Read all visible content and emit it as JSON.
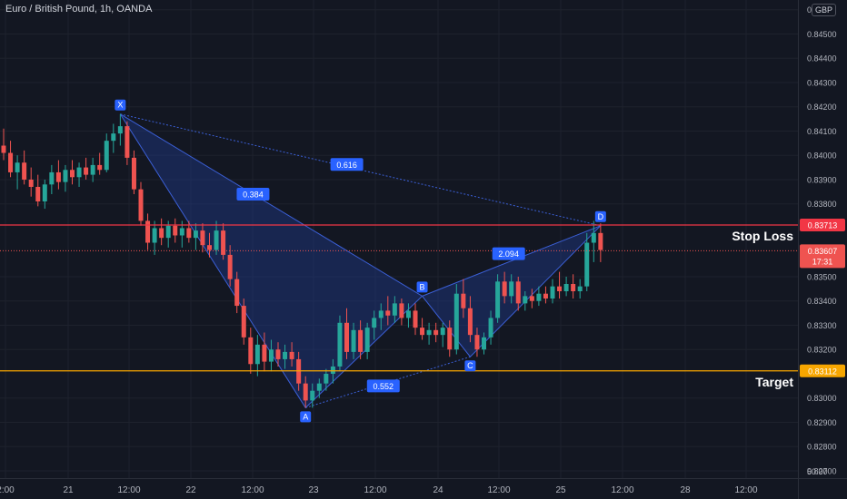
{
  "header": {
    "title": "Euro / British Pound, 1h, OANDA",
    "currency_badge": "GBP"
  },
  "price_axis": {
    "bottom_value": "50.00"
  },
  "colors": {
    "background": "#131722",
    "grid": "#1e222d",
    "up_candle": "#26a69a",
    "down_candle": "#ef5350",
    "pattern_fill": "#1e3a8a",
    "pattern_line": "#3b5fd6",
    "stop_loss_line": "#f23645",
    "target_line": "#f7a600",
    "label_bg": "#2962ff"
  },
  "chart_data": {
    "type": "candlestick",
    "x_tick_labels": [
      "2:00",
      "21",
      "12:00",
      "22",
      "12:00",
      "23",
      "12:00",
      "24",
      "12:00",
      "25",
      "12:00",
      "28",
      "12:00"
    ],
    "y_tick_labels": [
      "0",
      "0.84500",
      "0.84400",
      "0.84300",
      "0.84200",
      "0.84100",
      "0.84000",
      "0.83900",
      "0.83800",
      "0.83500",
      "0.83400",
      "0.83300",
      "0.83200",
      "0.83000",
      "0.82900",
      "0.82800",
      "0.82700"
    ],
    "ylim": [
      0.8267,
      0.8464
    ],
    "horizontal_lines": [
      {
        "label": "Stop Loss",
        "price": 0.83713,
        "price_label": "0.83713"
      },
      {
        "label": "Target",
        "price": 0.83112,
        "price_label": "0.83112"
      }
    ],
    "last_price": {
      "price": 0.83607,
      "price_label": "0.83607",
      "countdown": "17:31"
    },
    "harmonic_pattern": {
      "points": [
        {
          "name": "X",
          "price": 0.8417
        },
        {
          "name": "A",
          "price": 0.8296
        },
        {
          "name": "B",
          "price": 0.8342
        },
        {
          "name": "C",
          "price": 0.8317
        },
        {
          "name": "D",
          "price": 0.8371
        }
      ],
      "ratios": [
        {
          "legs": "XB",
          "label": "0.384"
        },
        {
          "legs": "XD",
          "label": "0.616"
        },
        {
          "legs": "AC",
          "label": "0.552"
        },
        {
          "legs": "BD",
          "label": "2.094"
        }
      ]
    },
    "candles": [
      {
        "o": 0.8404,
        "h": 0.8411,
        "l": 0.8398,
        "c": 0.8401
      },
      {
        "o": 0.8401,
        "h": 0.8406,
        "l": 0.8391,
        "c": 0.8393
      },
      {
        "o": 0.8393,
        "h": 0.84,
        "l": 0.8386,
        "c": 0.8397
      },
      {
        "o": 0.8397,
        "h": 0.8402,
        "l": 0.8388,
        "c": 0.839
      },
      {
        "o": 0.839,
        "h": 0.8395,
        "l": 0.8383,
        "c": 0.8387
      },
      {
        "o": 0.8387,
        "h": 0.8392,
        "l": 0.8379,
        "c": 0.8381
      },
      {
        "o": 0.8381,
        "h": 0.839,
        "l": 0.8378,
        "c": 0.8388
      },
      {
        "o": 0.8388,
        "h": 0.8396,
        "l": 0.8384,
        "c": 0.8393
      },
      {
        "o": 0.8393,
        "h": 0.8398,
        "l": 0.8386,
        "c": 0.8389
      },
      {
        "o": 0.8389,
        "h": 0.8396,
        "l": 0.8385,
        "c": 0.8394
      },
      {
        "o": 0.8394,
        "h": 0.8398,
        "l": 0.8388,
        "c": 0.8391
      },
      {
        "o": 0.8391,
        "h": 0.8397,
        "l": 0.8387,
        "c": 0.8395
      },
      {
        "o": 0.8395,
        "h": 0.8399,
        "l": 0.839,
        "c": 0.8392
      },
      {
        "o": 0.8392,
        "h": 0.8399,
        "l": 0.8389,
        "c": 0.8396
      },
      {
        "o": 0.8396,
        "h": 0.8401,
        "l": 0.8392,
        "c": 0.8394
      },
      {
        "o": 0.8394,
        "h": 0.8409,
        "l": 0.8393,
        "c": 0.8406
      },
      {
        "o": 0.8406,
        "h": 0.8413,
        "l": 0.8401,
        "c": 0.8409
      },
      {
        "o": 0.8409,
        "h": 0.8417,
        "l": 0.8404,
        "c": 0.8412
      },
      {
        "o": 0.8412,
        "h": 0.8414,
        "l": 0.8396,
        "c": 0.8399
      },
      {
        "o": 0.8399,
        "h": 0.8402,
        "l": 0.8384,
        "c": 0.8386
      },
      {
        "o": 0.8386,
        "h": 0.8389,
        "l": 0.8371,
        "c": 0.8373
      },
      {
        "o": 0.8373,
        "h": 0.8376,
        "l": 0.8361,
        "c": 0.8364
      },
      {
        "o": 0.8364,
        "h": 0.8373,
        "l": 0.8359,
        "c": 0.837
      },
      {
        "o": 0.837,
        "h": 0.8374,
        "l": 0.8363,
        "c": 0.8366
      },
      {
        "o": 0.8366,
        "h": 0.8373,
        "l": 0.8362,
        "c": 0.8371
      },
      {
        "o": 0.8371,
        "h": 0.8374,
        "l": 0.8364,
        "c": 0.8367
      },
      {
        "o": 0.8367,
        "h": 0.8373,
        "l": 0.8362,
        "c": 0.837
      },
      {
        "o": 0.837,
        "h": 0.8373,
        "l": 0.8364,
        "c": 0.8366
      },
      {
        "o": 0.8366,
        "h": 0.8372,
        "l": 0.8361,
        "c": 0.8369
      },
      {
        "o": 0.8369,
        "h": 0.8372,
        "l": 0.836,
        "c": 0.8363
      },
      {
        "o": 0.8363,
        "h": 0.8368,
        "l": 0.8358,
        "c": 0.8361
      },
      {
        "o": 0.8361,
        "h": 0.8373,
        "l": 0.8359,
        "c": 0.8369
      },
      {
        "o": 0.8369,
        "h": 0.8372,
        "l": 0.8357,
        "c": 0.8359
      },
      {
        "o": 0.8359,
        "h": 0.8363,
        "l": 0.8346,
        "c": 0.8349
      },
      {
        "o": 0.8349,
        "h": 0.8352,
        "l": 0.8335,
        "c": 0.8338
      },
      {
        "o": 0.8338,
        "h": 0.8341,
        "l": 0.8322,
        "c": 0.8325
      },
      {
        "o": 0.8325,
        "h": 0.8329,
        "l": 0.831,
        "c": 0.8314
      },
      {
        "o": 0.8314,
        "h": 0.8326,
        "l": 0.8309,
        "c": 0.8322
      },
      {
        "o": 0.8322,
        "h": 0.8327,
        "l": 0.8311,
        "c": 0.8315
      },
      {
        "o": 0.8315,
        "h": 0.8324,
        "l": 0.8311,
        "c": 0.832
      },
      {
        "o": 0.832,
        "h": 0.8323,
        "l": 0.8313,
        "c": 0.8316
      },
      {
        "o": 0.8316,
        "h": 0.8322,
        "l": 0.8312,
        "c": 0.8319
      },
      {
        "o": 0.8319,
        "h": 0.8323,
        "l": 0.8313,
        "c": 0.8316
      },
      {
        "o": 0.8316,
        "h": 0.8319,
        "l": 0.8303,
        "c": 0.8306
      },
      {
        "o": 0.8306,
        "h": 0.8309,
        "l": 0.8296,
        "c": 0.8299
      },
      {
        "o": 0.8299,
        "h": 0.8306,
        "l": 0.8296,
        "c": 0.8303
      },
      {
        "o": 0.8303,
        "h": 0.8308,
        "l": 0.83,
        "c": 0.8306
      },
      {
        "o": 0.8306,
        "h": 0.8312,
        "l": 0.8303,
        "c": 0.831
      },
      {
        "o": 0.831,
        "h": 0.8316,
        "l": 0.8306,
        "c": 0.8313
      },
      {
        "o": 0.8313,
        "h": 0.8334,
        "l": 0.8311,
        "c": 0.8331
      },
      {
        "o": 0.8331,
        "h": 0.8337,
        "l": 0.8316,
        "c": 0.8319
      },
      {
        "o": 0.8319,
        "h": 0.8331,
        "l": 0.8316,
        "c": 0.8328
      },
      {
        "o": 0.8328,
        "h": 0.8332,
        "l": 0.8316,
        "c": 0.8319
      },
      {
        "o": 0.8319,
        "h": 0.8331,
        "l": 0.8316,
        "c": 0.8329
      },
      {
        "o": 0.8329,
        "h": 0.8336,
        "l": 0.8324,
        "c": 0.8333
      },
      {
        "o": 0.8333,
        "h": 0.8339,
        "l": 0.8328,
        "c": 0.8336
      },
      {
        "o": 0.8336,
        "h": 0.8342,
        "l": 0.833,
        "c": 0.8334
      },
      {
        "o": 0.8334,
        "h": 0.8342,
        "l": 0.8331,
        "c": 0.8339
      },
      {
        "o": 0.8339,
        "h": 0.8341,
        "l": 0.833,
        "c": 0.8333
      },
      {
        "o": 0.8333,
        "h": 0.8339,
        "l": 0.8329,
        "c": 0.8336
      },
      {
        "o": 0.8336,
        "h": 0.8339,
        "l": 0.8326,
        "c": 0.8329
      },
      {
        "o": 0.8329,
        "h": 0.8333,
        "l": 0.8324,
        "c": 0.8326
      },
      {
        "o": 0.8326,
        "h": 0.8331,
        "l": 0.8322,
        "c": 0.8328
      },
      {
        "o": 0.8328,
        "h": 0.8331,
        "l": 0.8323,
        "c": 0.8326
      },
      {
        "o": 0.8326,
        "h": 0.8331,
        "l": 0.8321,
        "c": 0.8329
      },
      {
        "o": 0.8329,
        "h": 0.8332,
        "l": 0.8317,
        "c": 0.832
      },
      {
        "o": 0.832,
        "h": 0.8347,
        "l": 0.8318,
        "c": 0.8343
      },
      {
        "o": 0.8343,
        "h": 0.8349,
        "l": 0.8333,
        "c": 0.8337
      },
      {
        "o": 0.8337,
        "h": 0.8342,
        "l": 0.8323,
        "c": 0.8326
      },
      {
        "o": 0.8326,
        "h": 0.8329,
        "l": 0.8317,
        "c": 0.832
      },
      {
        "o": 0.832,
        "h": 0.8327,
        "l": 0.8318,
        "c": 0.8325
      },
      {
        "o": 0.8325,
        "h": 0.8336,
        "l": 0.8322,
        "c": 0.8333
      },
      {
        "o": 0.8333,
        "h": 0.8351,
        "l": 0.8331,
        "c": 0.8348
      },
      {
        "o": 0.8348,
        "h": 0.8352,
        "l": 0.8339,
        "c": 0.8342
      },
      {
        "o": 0.8342,
        "h": 0.8351,
        "l": 0.8339,
        "c": 0.8348
      },
      {
        "o": 0.8348,
        "h": 0.835,
        "l": 0.8336,
        "c": 0.8339
      },
      {
        "o": 0.8339,
        "h": 0.8344,
        "l": 0.8336,
        "c": 0.8342
      },
      {
        "o": 0.8342,
        "h": 0.8345,
        "l": 0.8337,
        "c": 0.834
      },
      {
        "o": 0.834,
        "h": 0.8346,
        "l": 0.8338,
        "c": 0.8343
      },
      {
        "o": 0.8343,
        "h": 0.8346,
        "l": 0.8339,
        "c": 0.8341
      },
      {
        "o": 0.8341,
        "h": 0.8349,
        "l": 0.8339,
        "c": 0.8346
      },
      {
        "o": 0.8346,
        "h": 0.8352,
        "l": 0.8341,
        "c": 0.8344
      },
      {
        "o": 0.8344,
        "h": 0.835,
        "l": 0.8342,
        "c": 0.8347
      },
      {
        "o": 0.8347,
        "h": 0.8351,
        "l": 0.8341,
        "c": 0.8344
      },
      {
        "o": 0.8344,
        "h": 0.8349,
        "l": 0.8341,
        "c": 0.8346
      },
      {
        "o": 0.8346,
        "h": 0.8368,
        "l": 0.8344,
        "c": 0.8364
      },
      {
        "o": 0.8364,
        "h": 0.8373,
        "l": 0.8356,
        "c": 0.8368
      },
      {
        "o": 0.8368,
        "h": 0.8372,
        "l": 0.8356,
        "c": 0.8361
      }
    ]
  }
}
